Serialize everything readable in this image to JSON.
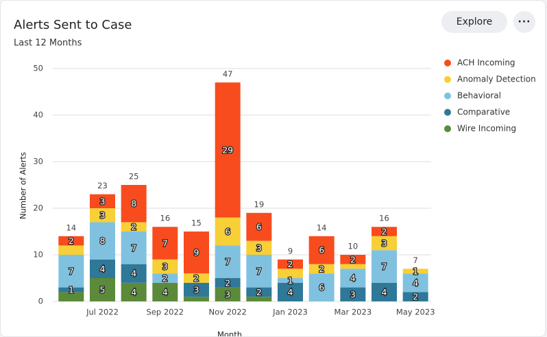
{
  "chart_data": {
    "type": "bar",
    "stacked": true,
    "title": "Alerts Sent to Case",
    "subtitle": "Last 12 Months",
    "x_label": "Month",
    "y_label": "Number of Alerts",
    "explore_button": "Explore",
    "categories": [
      null,
      "Jul 2022",
      null,
      "Sep 2022",
      null,
      "Nov 2022",
      null,
      "Jan 2023",
      null,
      "Mar 2023",
      null,
      "May 2023"
    ],
    "totals": [
      14,
      23,
      25,
      16,
      15,
      47,
      19,
      9,
      14,
      10,
      16,
      7
    ],
    "series": [
      {
        "name": "ACH Incoming",
        "color": "#f84c1e",
        "values": [
          2,
          3,
          8,
          7,
          9,
          29,
          6,
          2,
          6,
          2,
          2,
          0
        ]
      },
      {
        "name": "Anomaly Detection",
        "color": "#f7cf36",
        "values": [
          2,
          3,
          2,
          3,
          2,
          6,
          3,
          2,
          2,
          1,
          3,
          1
        ]
      },
      {
        "name": "Behavioral",
        "color": "#80c1e0",
        "values": [
          7,
          8,
          7,
          2,
          0,
          7,
          7,
          1,
          6,
          4,
          7,
          4
        ]
      },
      {
        "name": "Comparative",
        "color": "#2f7898",
        "values": [
          1,
          4,
          4,
          0,
          3,
          2,
          2,
          4,
          0,
          3,
          4,
          2
        ]
      },
      {
        "name": "Wire Incoming",
        "color": "#5b8a3a",
        "values": [
          2,
          5,
          4,
          4,
          1,
          3,
          1,
          0,
          0,
          0,
          0,
          0
        ]
      }
    ],
    "ylim": [
      0,
      50
    ],
    "yticks": [
      0,
      10,
      20,
      30,
      40,
      50
    ],
    "grid": true,
    "legend": "right"
  }
}
